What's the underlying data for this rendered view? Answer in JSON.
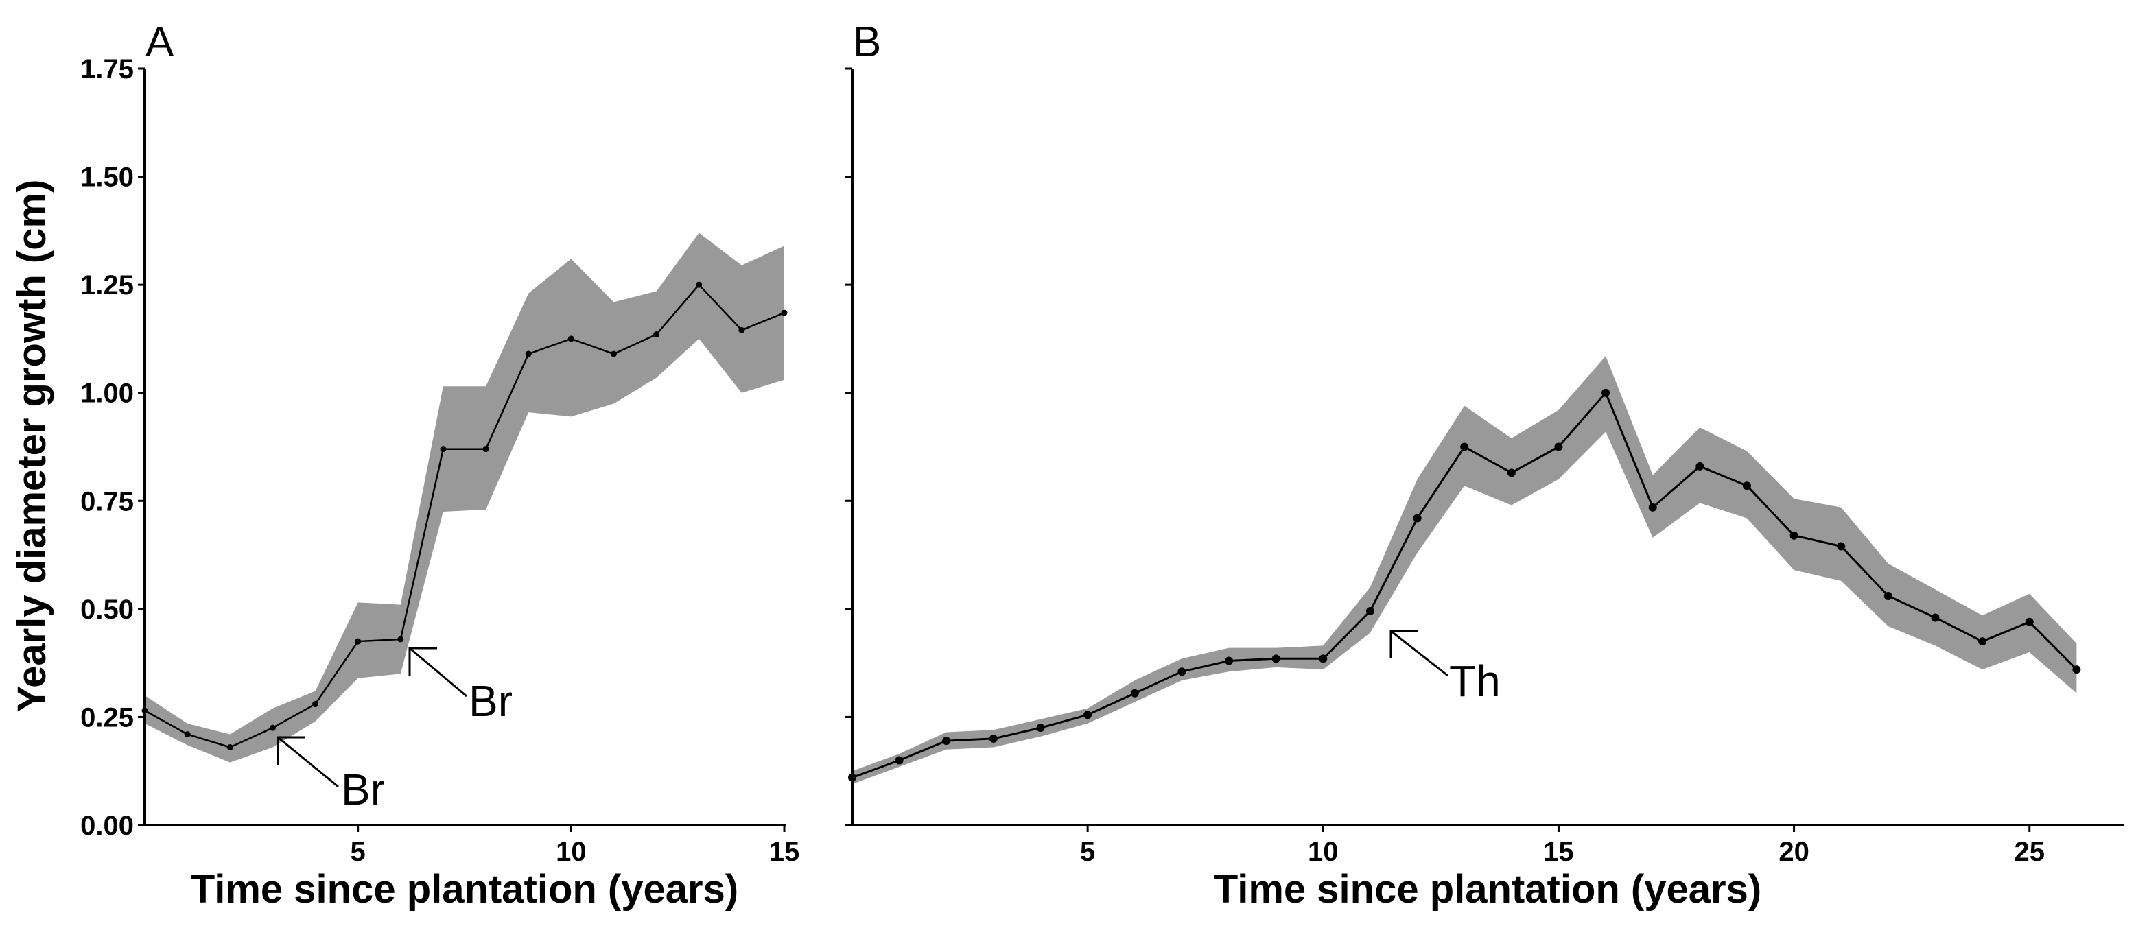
{
  "ylabel": "Yearly diameter growth (cm)",
  "chart_data": [
    {
      "type": "line",
      "panel_label": "A",
      "xlabel": "Time since plantation (years)",
      "ylabel": "Yearly diameter growth (cm)",
      "xlim": [
        0,
        15
      ],
      "ylim": [
        0,
        1.75
      ],
      "xticks": [
        5,
        10,
        15
      ],
      "xtick_labels": [
        "5",
        "10",
        "15"
      ],
      "yticks": [
        0,
        0.25,
        0.5,
        0.75,
        1.0,
        1.25,
        1.5,
        1.75
      ],
      "ytick_labels": [
        "0.00",
        "0.25",
        "0.50",
        "0.75",
        "1.00",
        "1.25",
        "1.50",
        "1.75"
      ],
      "x": [
        0,
        1,
        2,
        3,
        4,
        5,
        6,
        7,
        8,
        9,
        10,
        11,
        12,
        13,
        14,
        15
      ],
      "y": [
        0.265,
        0.21,
        0.18,
        0.225,
        0.28,
        0.425,
        0.43,
        0.87,
        0.87,
        1.09,
        1.125,
        1.09,
        1.135,
        1.25,
        1.145,
        1.185
      ],
      "lower": [
        0.235,
        0.185,
        0.145,
        0.18,
        0.24,
        0.34,
        0.35,
        0.725,
        0.73,
        0.955,
        0.945,
        0.975,
        1.035,
        1.125,
        1.0,
        1.03
      ],
      "upper": [
        0.3,
        0.235,
        0.21,
        0.27,
        0.31,
        0.515,
        0.51,
        1.015,
        1.015,
        1.23,
        1.31,
        1.21,
        1.235,
        1.37,
        1.295,
        1.34
      ],
      "annotations": [
        {
          "text": "Br",
          "x": 3,
          "y": 0.2
        },
        {
          "text": "Br",
          "x": 6,
          "y": 0.42
        }
      ]
    },
    {
      "type": "line",
      "panel_label": "B",
      "xlabel": "Time since plantation (years)",
      "ylabel": "",
      "xlim": [
        0,
        27
      ],
      "ylim": [
        0,
        1.75
      ],
      "xticks": [
        5,
        10,
        15,
        20,
        25
      ],
      "xtick_labels": [
        "5",
        "10",
        "15",
        "20",
        "25"
      ],
      "yticks": [
        0,
        0.25,
        0.5,
        0.75,
        1.0,
        1.25,
        1.5,
        1.75
      ],
      "x": [
        0,
        1,
        2,
        3,
        4,
        5,
        6,
        7,
        8,
        9,
        10,
        11,
        12,
        13,
        14,
        15,
        16,
        17,
        18,
        19,
        20,
        21,
        22,
        23,
        24,
        25,
        26
      ],
      "y": [
        0.11,
        0.15,
        0.195,
        0.2,
        0.225,
        0.255,
        0.305,
        0.355,
        0.38,
        0.385,
        0.385,
        0.495,
        0.71,
        0.875,
        0.815,
        0.875,
        1.0,
        0.735,
        0.83,
        0.785,
        0.67,
        0.645,
        0.53,
        0.48,
        0.425,
        0.47,
        0.36
      ],
      "lower": [
        0.095,
        0.135,
        0.175,
        0.18,
        0.205,
        0.235,
        0.285,
        0.335,
        0.355,
        0.365,
        0.36,
        0.445,
        0.63,
        0.785,
        0.74,
        0.8,
        0.91,
        0.665,
        0.745,
        0.71,
        0.59,
        0.565,
        0.46,
        0.415,
        0.36,
        0.4,
        0.305
      ],
      "upper": [
        0.125,
        0.165,
        0.215,
        0.22,
        0.245,
        0.27,
        0.335,
        0.385,
        0.41,
        0.41,
        0.415,
        0.55,
        0.8,
        0.97,
        0.895,
        0.96,
        1.085,
        0.81,
        0.92,
        0.865,
        0.755,
        0.735,
        0.605,
        0.545,
        0.485,
        0.535,
        0.42
      ],
      "annotations": [
        {
          "text": "Th",
          "x": 11.3,
          "y": 0.45
        }
      ]
    }
  ],
  "colors": {
    "band": "#999999",
    "line": "#000000",
    "axis": "#000000"
  }
}
